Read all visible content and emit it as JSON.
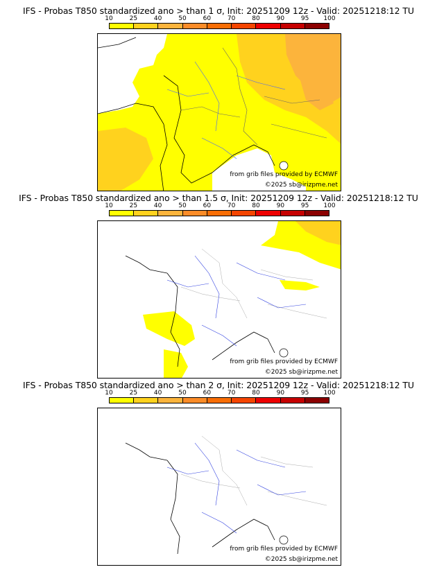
{
  "colors": [
    "#ffff00",
    "#ffd21e",
    "#fcb43c",
    "#fc8c28",
    "#f96e05",
    "#f54500",
    "#ee0000",
    "#c60000",
    "#8b0000",
    "#5a0000"
  ],
  "legend_ticks": [
    "10",
    "25",
    "40",
    "50",
    "60",
    "70",
    "80",
    "90",
    "95",
    "100"
  ],
  "credit_source": "from grib files provided by ECMWF",
  "credit_copyright": "©2025 sb@irizpme.net",
  "panels": [
    {
      "title": "IFS - Probas T850  standardized ano > than 1 σ, Init: 20251209 12z - Valid: 20251218:12 TU"
    },
    {
      "title": "IFS - Probas T850  standardized ano > than 1.5 σ, Init: 20251209 12z - Valid: 20251218:12 TU"
    },
    {
      "title": "IFS - Probas T850  standardized ano > than 2 σ, Init: 20251209 12z - Valid: 20251218:12 TU"
    }
  ]
}
